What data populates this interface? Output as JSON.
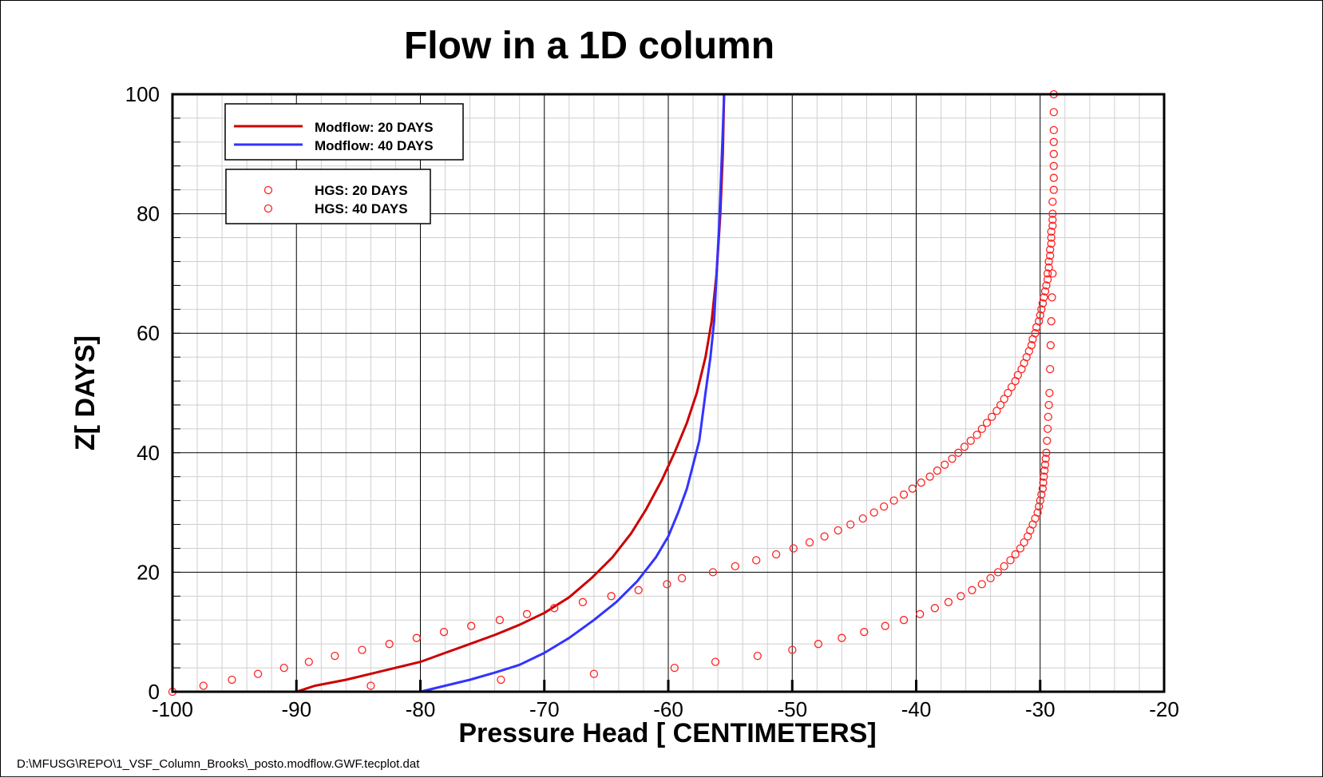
{
  "chart_data": {
    "type": "line",
    "title": "Flow in a 1D column",
    "xlabel": "Pressure Head [ CENTIMETERS]",
    "ylabel": "Z[ DAYS]",
    "xlim": [
      -100,
      -20
    ],
    "ylim": [
      0,
      100
    ],
    "xticks": [
      "-100",
      "-90",
      "-80",
      "-70",
      "-60",
      "-50",
      "-40",
      "-30",
      "-20"
    ],
    "yticks": [
      "0",
      "20",
      "40",
      "60",
      "80",
      "100"
    ],
    "grid": true,
    "footer": "D:\\MFUSG\\REPO\\1_VSF_Column_Brooks\\_posto.modflow.GWF.tecplot.dat",
    "legend_lines": [
      {
        "name": "Modflow: 20 DAYS",
        "color": "#cc0000"
      },
      {
        "name": "Modflow: 40 DAYS",
        "color": "#3333ff"
      }
    ],
    "legend_markers": [
      {
        "name": "HGS: 20 DAYS",
        "color": "#ff2222"
      },
      {
        "name": "HGS: 40 DAYS",
        "color": "#ff2222"
      }
    ],
    "series": [
      {
        "name": "Modflow: 20 DAYS",
        "kind": "line",
        "color": "#cc0000",
        "x": [
          -90,
          -88.5,
          -86,
          -84,
          -82,
          -80,
          -78,
          -76,
          -74,
          -72,
          -70,
          -68,
          -66.2,
          -64.5,
          -63,
          -61.8,
          -60.5,
          -59.5,
          -58.5,
          -57.7,
          -57,
          -56.5,
          -56.1,
          -55.8,
          -55.6,
          -55.5
        ],
        "y": [
          0,
          1,
          2,
          3,
          4,
          5,
          6.5,
          8,
          9.5,
          11.2,
          13.2,
          15.8,
          19,
          22.5,
          26.5,
          30.5,
          35.5,
          40,
          45,
          50,
          56,
          62,
          70,
          80,
          90,
          100
        ]
      },
      {
        "name": "Modflow: 40 DAYS",
        "kind": "line",
        "color": "#3333ff",
        "x": [
          -80,
          -78,
          -76,
          -74,
          -72,
          -70,
          -68,
          -66,
          -64.2,
          -62.5,
          -61,
          -60,
          -59.2,
          -58.5,
          -58,
          -57.5,
          -57,
          -56.6,
          -56.3,
          -56.1,
          -55.9,
          -55.75,
          -55.6,
          -55.5
        ],
        "y": [
          0,
          1,
          2,
          3.2,
          4.5,
          6.5,
          9,
          12,
          15,
          18.5,
          22.5,
          26,
          30,
          34,
          38,
          42,
          50,
          56,
          62,
          70,
          78,
          86,
          94,
          100
        ]
      },
      {
        "name": "HGS: 20 DAYS",
        "kind": "marker",
        "color": "#ff2222",
        "x": [
          -100,
          -97.5,
          -95.2,
          -93.1,
          -91.0,
          -89.0,
          -86.9,
          -84.7,
          -82.5,
          -80.3,
          -78.1,
          -75.9,
          -73.6,
          -71.4,
          -69.2,
          -66.9,
          -64.6,
          -62.4,
          -60.1,
          -58.9,
          -56.4,
          -54.6,
          -52.9,
          -51.3,
          -49.9,
          -48.6,
          -47.4,
          -46.3,
          -45.3,
          -44.3,
          -43.4,
          -42.6,
          -41.8,
          -41.0,
          -40.3,
          -39.6,
          -38.9,
          -38.3,
          -37.7,
          -37.1,
          -36.6,
          -36.1,
          -35.6,
          -35.1,
          -34.7,
          -34.3,
          -33.9,
          -33.5,
          -33.2,
          -32.9,
          -32.6,
          -32.3,
          -32.0,
          -31.8,
          -31.5,
          -31.3,
          -31.1,
          -30.9,
          -30.7,
          -30.6,
          -30.4,
          -30.3,
          -30.1,
          -30.0,
          -29.9,
          -29.8,
          -29.7,
          -29.6,
          -29.5,
          -29.4,
          -29.4,
          -29.3,
          -29.3,
          -29.2,
          -29.2,
          -29.1,
          -29.1,
          -29.1,
          -29.0,
          -29.0,
          -29.0,
          -29.0,
          -28.9,
          -28.9,
          -28.9,
          -28.9,
          -28.9,
          -28.9,
          -28.9,
          -28.9
        ],
        "y": [
          0,
          1,
          2,
          3,
          4,
          5,
          6,
          7,
          8,
          9,
          10,
          11,
          12,
          13,
          14,
          15,
          16,
          17,
          18,
          19,
          20,
          21,
          22,
          23,
          24,
          25,
          26,
          27,
          28,
          29,
          30,
          31,
          32,
          33,
          34,
          35,
          36,
          37,
          38,
          39,
          40,
          41,
          42,
          43,
          44,
          45,
          46,
          47,
          48,
          49,
          50,
          51,
          52,
          53,
          54,
          55,
          56,
          57,
          58,
          59,
          60,
          61,
          62,
          63,
          64,
          65,
          66,
          67,
          68,
          69,
          70,
          71,
          72,
          73,
          74,
          75,
          76,
          77,
          78,
          79,
          80,
          82,
          84,
          86,
          88,
          90,
          92,
          94,
          97,
          100
        ]
      },
      {
        "name": "HGS: 40 DAYS",
        "kind": "marker",
        "color": "#ff2222",
        "x": [
          -84,
          -73.5,
          -66,
          -59.5,
          -56.2,
          -52.8,
          -50,
          -47.9,
          -46,
          -44.2,
          -42.5,
          -41,
          -39.7,
          -38.5,
          -37.4,
          -36.4,
          -35.5,
          -34.7,
          -34,
          -33.4,
          -32.9,
          -32.4,
          -32,
          -31.6,
          -31.3,
          -31.0,
          -30.8,
          -30.6,
          -30.4,
          -30.2,
          -30.1,
          -30.0,
          -29.9,
          -29.8,
          -29.75,
          -29.7,
          -29.65,
          -29.6,
          -29.55,
          -29.5,
          -29.45,
          -29.4,
          -29.35,
          -29.3,
          -29.25,
          -29.2,
          -29.15,
          -29.1,
          -29.05,
          -29.0
        ],
        "y": [
          1,
          2,
          3,
          4,
          5,
          6,
          7,
          8,
          9,
          10,
          11,
          12,
          13,
          14,
          15,
          16,
          17,
          18,
          19,
          20,
          21,
          22,
          23,
          24,
          25,
          26,
          27,
          28,
          29,
          30,
          31,
          32,
          33,
          34,
          35,
          36,
          37,
          38,
          39,
          40,
          42,
          44,
          46,
          48,
          50,
          54,
          58,
          62,
          66,
          70
        ]
      }
    ]
  }
}
